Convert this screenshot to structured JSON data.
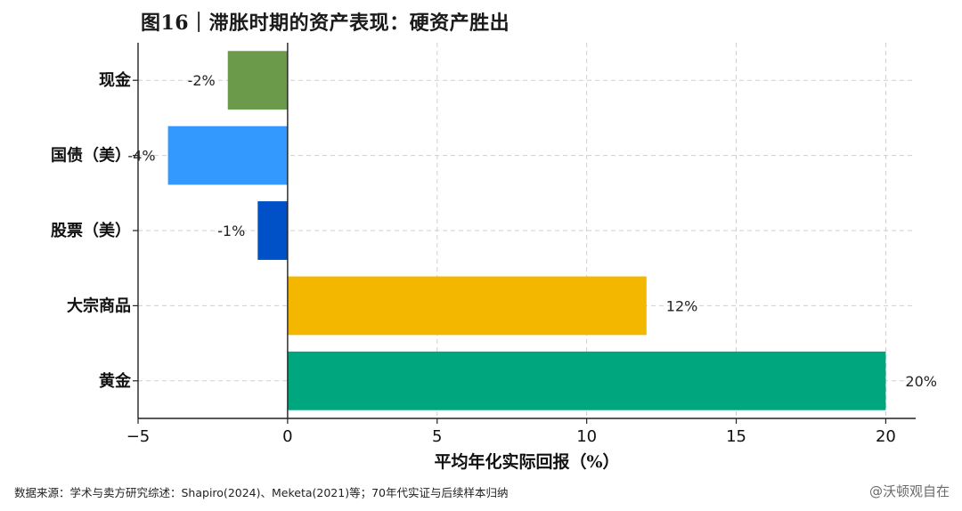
{
  "title": "图16｜滞胀时期的资产表现：硬资产胜出",
  "source": "数据来源：学术与卖方研究综述：Shapiro(2024)、Meketa(2021)等；70年代实证与后续样本归纳",
  "watermark": "@沃顿观自在",
  "chart_data": {
    "type": "bar",
    "orientation": "horizontal",
    "categories": [
      "现金",
      "国债（美）",
      "股票（美）",
      "大宗商品",
      "黄金"
    ],
    "values": [
      -2,
      -4,
      -1,
      12,
      20
    ],
    "data_labels": [
      "-2%",
      "-4%",
      "-1%",
      "12%",
      "20%"
    ],
    "colors": [
      "#6a9a4a",
      "#3399ff",
      "#0050c8",
      "#f3b700",
      "#00a67d"
    ],
    "xlabel": "平均年化实际回报（%）",
    "ylabel": "",
    "xlim": [
      -5,
      21
    ],
    "xticks": [
      -5,
      0,
      5,
      10,
      15,
      20
    ],
    "grid": true,
    "legend": "none"
  }
}
